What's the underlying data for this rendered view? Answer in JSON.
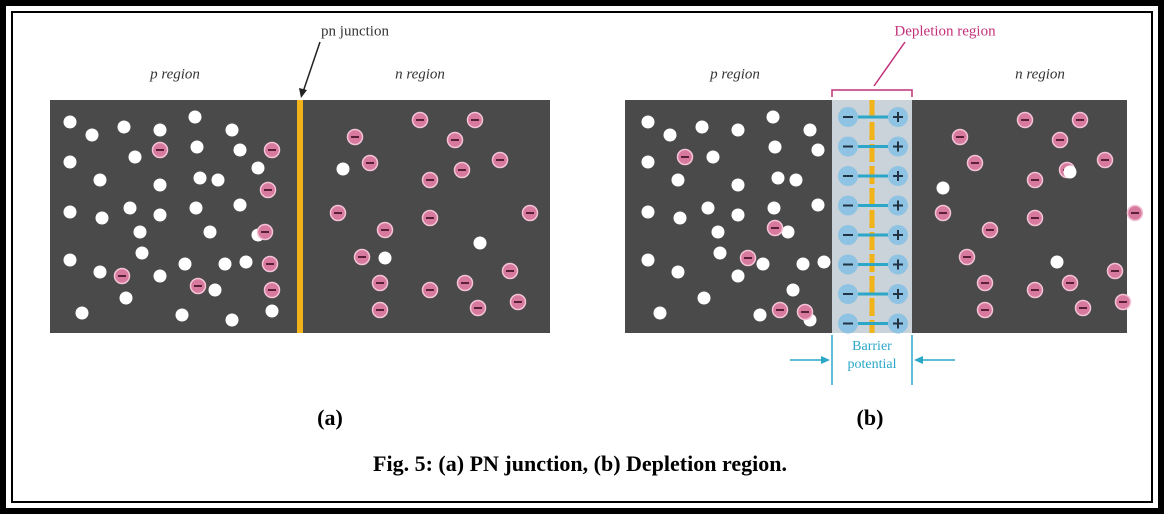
{
  "figure": {
    "panels": [
      {
        "p_label": "p region",
        "n_label": "n region",
        "junction_label": "pn junction",
        "letter": "(a)"
      },
      {
        "p_label": "p region",
        "n_label": "n region",
        "depletion_label": "Depletion region",
        "barrier_label": "Barrier potential",
        "letter": "(b)"
      }
    ],
    "caption": "Fig. 5: (a) PN junction, (b) Depletion region."
  }
}
